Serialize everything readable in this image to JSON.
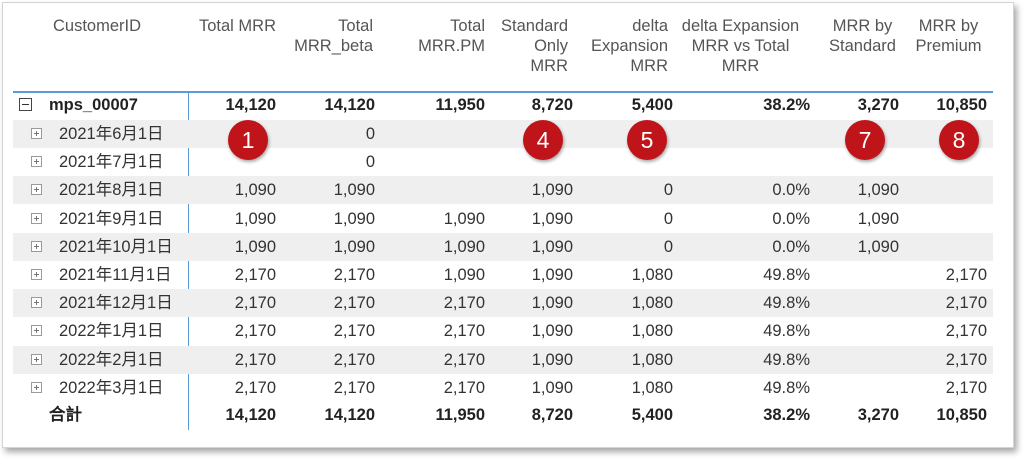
{
  "columns": {
    "customer": "CustomerID",
    "total_mrr": "Total MRR",
    "total_mrr_beta_1": "Total",
    "total_mrr_beta_2": "MRR_beta",
    "total_mrr_pm_1": "Total",
    "total_mrr_pm_2": "MRR.PM",
    "standard_only_1": "Standard",
    "standard_only_2": "Only",
    "standard_only_3": "MRR",
    "delta_expansion_1": "delta",
    "delta_expansion_2": "Expansion",
    "delta_expansion_3": "MRR",
    "delta_vs_total_1": "delta Expansion",
    "delta_vs_total_2": "MRR vs Total",
    "delta_vs_total_3": "MRR",
    "mrr_by_standard_1": "MRR by",
    "mrr_by_standard_2": "Standard",
    "mrr_by_premium_1": "MRR by",
    "mrr_by_premium_2": "Premium"
  },
  "group": {
    "label": "mps_00007",
    "values": [
      "14,120",
      "14,120",
      "11,950",
      "8,720",
      "5,400",
      "38.2%",
      "3,270",
      "10,850"
    ]
  },
  "rows": [
    {
      "label": "2021年6月1日",
      "values": [
        "",
        "0",
        "",
        "",
        "",
        "",
        "",
        ""
      ]
    },
    {
      "label": "2021年7月1日",
      "values": [
        "",
        "0",
        "",
        "",
        "",
        "",
        "",
        ""
      ]
    },
    {
      "label": "2021年8月1日",
      "values": [
        "1,090",
        "1,090",
        "",
        "1,090",
        "0",
        "0.0%",
        "1,090",
        ""
      ]
    },
    {
      "label": "2021年9月1日",
      "values": [
        "1,090",
        "1,090",
        "1,090",
        "1,090",
        "0",
        "0.0%",
        "1,090",
        ""
      ]
    },
    {
      "label": "2021年10月1日",
      "values": [
        "1,090",
        "1,090",
        "1,090",
        "1,090",
        "0",
        "0.0%",
        "1,090",
        ""
      ]
    },
    {
      "label": "2021年11月1日",
      "values": [
        "2,170",
        "2,170",
        "1,090",
        "1,090",
        "1,080",
        "49.8%",
        "",
        "2,170"
      ]
    },
    {
      "label": "2021年12月1日",
      "values": [
        "2,170",
        "2,170",
        "2,170",
        "1,090",
        "1,080",
        "49.8%",
        "",
        "2,170"
      ]
    },
    {
      "label": "2022年1月1日",
      "values": [
        "2,170",
        "2,170",
        "2,170",
        "1,090",
        "1,080",
        "49.8%",
        "",
        "2,170"
      ]
    },
    {
      "label": "2022年2月1日",
      "values": [
        "2,170",
        "2,170",
        "2,170",
        "1,090",
        "1,080",
        "49.8%",
        "",
        "2,170"
      ]
    },
    {
      "label": "2022年3月1日",
      "values": [
        "2,170",
        "2,170",
        "2,170",
        "1,090",
        "1,080",
        "49.8%",
        "",
        "2,170"
      ]
    }
  ],
  "total": {
    "label": "合計",
    "values": [
      "14,120",
      "14,120",
      "11,950",
      "8,720",
      "5,400",
      "38.2%",
      "3,270",
      "10,850"
    ]
  },
  "badges": [
    "1",
    "4",
    "5",
    "7",
    "8"
  ],
  "colors": {
    "accent_line": "#5b9bd5",
    "badge": "#c0141b",
    "row_shade": "#efefef"
  }
}
